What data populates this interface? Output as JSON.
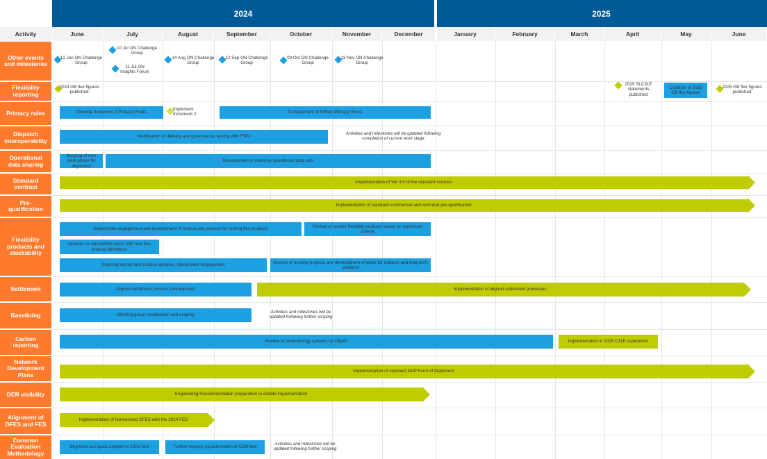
{
  "header": {
    "activity": "Activity",
    "years": [
      "2024",
      "2025"
    ],
    "months": [
      "June",
      "July",
      "August",
      "September",
      "October",
      "November",
      "December",
      "January",
      "February",
      "March",
      "April",
      "May",
      "June"
    ]
  },
  "rows": [
    "Other events and milestones",
    "Flexibility reporting",
    "Primacy rules",
    "Dispatch interoperability",
    "Operational data sharing",
    "Standard contract",
    "Pre-qualification",
    "Flexibility products and stackability",
    "Settlement",
    "Baselining",
    "Carbon reporting",
    "Network Development Plans",
    "DER visibility",
    "Alignment of DFES and FES",
    "Common Evaluation Methodology"
  ],
  "milestones": {
    "jun12": "12 Jun ON Challenge Group",
    "jul10": "10 Jul ON Challenge Group",
    "jul11": "11 Jul ON Insights Forum",
    "aug14": "14 Aug ON Challenge Group",
    "sep12": "12 Sep ON Challenge Group",
    "oct09": "09 Oct ON Challenge Group",
    "nov13": "13 Nov ON Challenge Group",
    "gb2024": "2024 GB flex figures published",
    "slc31e": "2025 SLC31E statements published",
    "collation": "Collation of 2025 GB flex figures",
    "gb2025": "2025 GB flex figures published",
    "impl2": "Implement Increment 2"
  },
  "bars": {
    "primacy_dev2": "Develop Increment 2 Primacy Rules",
    "primacy_further": "Development of further Primacy Rules",
    "dispatch_mob": "Mobilisation of delivery and governance, testing with FSPs",
    "dispatch_note": "Activities and milestones will be updated following completion of current work stage",
    "ops_scoping": "Scoping of new work phase for alignment",
    "ops_dev": "Development of real time operational data sets",
    "contract": "Implementation of Ver 3.0 of the standard contract",
    "prequal": "Implementation of standard commercial and technical pre-qualification",
    "flex_engage": "Stakeholder engagement and development of criteria and process for retiring flex products",
    "flex_review": "Review of current flexibility products based on retirement criteria",
    "flex_updates": "Updates to stackability report with new flex product definitions",
    "flex_stacking": "Stacking barrier and solution analysis, stakeholder engagement",
    "flex_existing": "Review of existing projects and development of plans for medium and long-term solutions",
    "settle_dev": "Aligned settlement process Development",
    "settle_impl": "Implementation of aligned settlement processes",
    "base_mob": "Working group mobilisation and scoping",
    "base_note": "Activities and milestones will be updated following further scoping",
    "carbon_review": "Review of methodology updates by Ofgem",
    "carbon_impl": "Implementation in 2025 C31E statements",
    "ndp": "Implementation of standard NDP Form of Statement",
    "der": "Engineering Recommendation preparation to enable implementation",
    "dfes": "Implementation of harmonised DFES with the 2024 FES",
    "cem_bug": "Bug fixes and quick updates to CEM tool",
    "cem_further": "Further scoping on automation of CEM tool",
    "cem_note": "Activities and milestones will be updated following further scoping"
  },
  "colors": {
    "header_blue": "#005A96",
    "row_orange": "#FF7A2C",
    "activity_blue": "#1CA0E2",
    "implementation_green": "#BFCC00"
  }
}
